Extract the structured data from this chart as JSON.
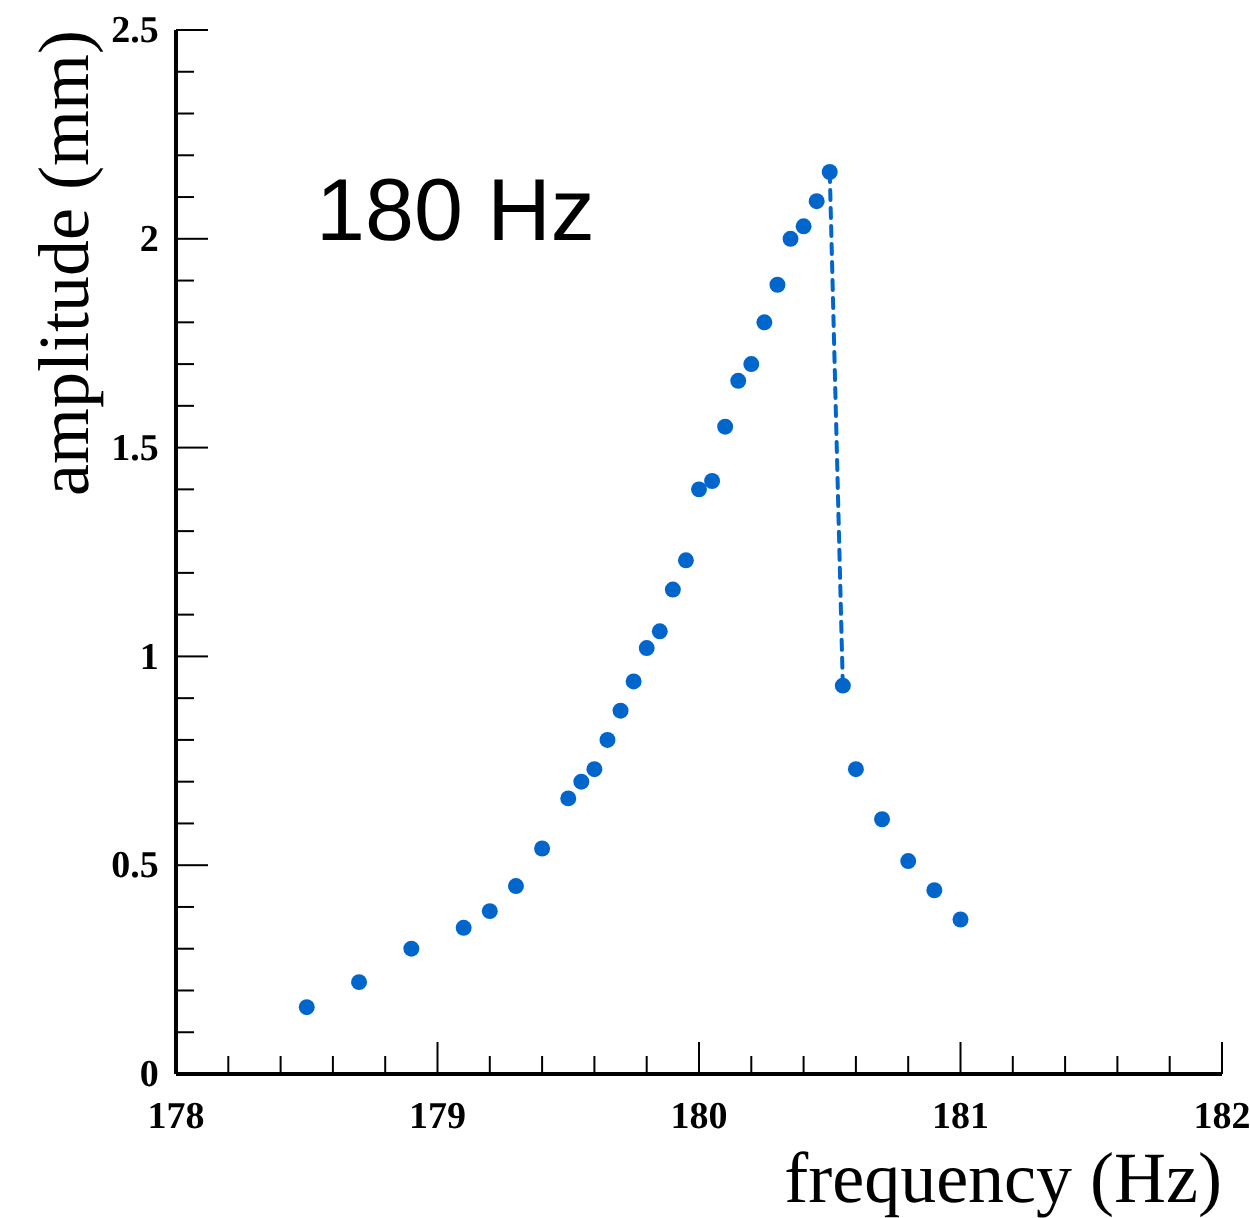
{
  "chart_data": {
    "type": "scatter",
    "xlabel": "frequency (Hz)",
    "ylabel": "amplitude (mm)",
    "annotations": [
      "180 Hz"
    ],
    "xlim": [
      178,
      182
    ],
    "ylim": [
      0,
      2.5
    ],
    "xticks": [
      178,
      {
        "value": 178.2,
        "label": null
      },
      {
        "value": 178.4,
        "label": null
      },
      {
        "value": 178.6,
        "label": null
      },
      {
        "value": 178.8,
        "label": null
      },
      179,
      {
        "value": 179.2,
        "label": null
      },
      {
        "value": 179.4,
        "label": null
      },
      {
        "value": 179.6,
        "label": null
      },
      {
        "value": 179.8,
        "label": null
      },
      180,
      {
        "value": 180.2,
        "label": null
      },
      {
        "value": 180.4,
        "label": null
      },
      {
        "value": 180.6,
        "label": null
      },
      {
        "value": 180.8,
        "label": null
      },
      181,
      {
        "value": 181.2,
        "label": null
      },
      {
        "value": 181.4,
        "label": null
      },
      {
        "value": 181.6,
        "label": null
      },
      {
        "value": 181.8,
        "label": null
      },
      182
    ],
    "yticks": [
      0,
      {
        "value": 0.1,
        "label": null
      },
      {
        "value": 0.2,
        "label": null
      },
      {
        "value": 0.3,
        "label": null
      },
      {
        "value": 0.4,
        "label": null
      },
      0.5,
      {
        "value": 0.6,
        "label": null
      },
      {
        "value": 0.7,
        "label": null
      },
      {
        "value": 0.8,
        "label": null
      },
      {
        "value": 0.9,
        "label": null
      },
      1,
      {
        "value": 1.1,
        "label": null
      },
      {
        "value": 1.2,
        "label": null
      },
      {
        "value": 1.3,
        "label": null
      },
      {
        "value": 1.4,
        "label": null
      },
      1.5,
      {
        "value": 1.6,
        "label": null
      },
      {
        "value": 1.7,
        "label": null
      },
      {
        "value": 1.8,
        "label": null
      },
      {
        "value": 1.9,
        "label": null
      },
      2,
      {
        "value": 2.1,
        "label": null
      },
      {
        "value": 2.2,
        "label": null
      },
      {
        "value": 2.3,
        "label": null
      },
      {
        "value": 2.4,
        "label": null
      },
      2.5
    ],
    "grid": false,
    "series": [
      {
        "marker": "circle",
        "color": "#0066cc",
        "x": [
          178.5,
          178.7,
          178.9,
          179.1,
          179.2,
          179.3,
          179.4,
          179.5,
          179.55,
          179.6,
          179.65,
          179.7,
          179.75,
          179.8,
          179.85,
          179.9,
          179.95,
          180.0,
          180.05,
          180.1,
          180.15,
          180.2,
          180.25,
          180.3,
          180.35,
          180.4,
          180.45,
          180.5,
          180.55,
          180.6,
          180.7,
          180.8,
          180.9,
          181.0
        ],
        "values": [
          0.16,
          0.22,
          0.3,
          0.35,
          0.39,
          0.45,
          0.54,
          0.66,
          0.7,
          0.73,
          0.8,
          0.87,
          0.94,
          1.02,
          1.06,
          1.16,
          1.23,
          1.4,
          1.42,
          1.55,
          1.66,
          1.7,
          1.8,
          1.89,
          2.0,
          2.03,
          2.09,
          2.16,
          0.93,
          0.73,
          0.61,
          0.51,
          0.44,
          0.37
        ]
      },
      {
        "type": "line",
        "marker": "none",
        "line_style": "dashed",
        "color": "#0066cc",
        "x": [
          180.5,
          180.55
        ],
        "values": [
          2.16,
          0.93
        ]
      }
    ]
  }
}
